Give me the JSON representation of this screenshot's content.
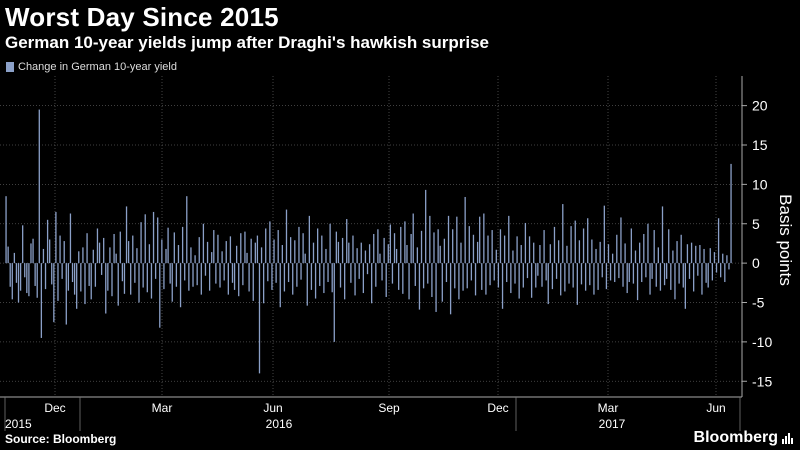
{
  "header": {
    "title": "Worst Day Since 2015",
    "subtitle": "German 10-year yields jump after Draghi's hawkish surprise"
  },
  "legend": {
    "label": "Change in German 10-year yield",
    "color": "#8ba0c8"
  },
  "footer": {
    "source": "Source: Bloomberg",
    "brand": "Bloomberg"
  },
  "chart_data": {
    "type": "bar",
    "ylabel": "Basis points",
    "ylim": [
      -17,
      23
    ],
    "yticks": [
      20,
      15,
      10,
      5,
      0,
      -5,
      -10,
      -15
    ],
    "month_labels": [
      "Dec",
      "Mar",
      "Jun",
      "Sep",
      "Dec",
      "Mar",
      "Jun"
    ],
    "year_labels": [
      "2015",
      "2016",
      "2017"
    ],
    "grid": true,
    "legend_position": "top-left",
    "series": [
      {
        "name": "Change in German 10-year yield",
        "values": [
          8.5,
          2.1,
          -3.0,
          -4.6,
          1.3,
          -2.5,
          -5.0,
          -3.5,
          4.8,
          -1.8,
          -3.8,
          -4.2,
          2.5,
          3.1,
          -2.9,
          -4.4,
          19.5,
          -9.5,
          1.8,
          -3.3,
          5.5,
          3.0,
          -2.7,
          -7.5,
          6.5,
          -4.8,
          3.5,
          -2.0,
          2.8,
          -7.8,
          -3.5,
          6.3,
          -2.4,
          -4.0,
          -5.8,
          1.5,
          -3.6,
          2.0,
          -5.2,
          3.8,
          -2.9,
          -4.6,
          1.7,
          -3.0,
          4.4,
          2.6,
          -1.5,
          3.2,
          -6.4,
          -3.5,
          2.0,
          -4.2,
          3.7,
          1.2,
          -5.4,
          4.0,
          -2.3,
          -3.9,
          7.2,
          2.8,
          -4.0,
          3.5,
          -2.5,
          1.9,
          -5.0,
          5.2,
          -3.1,
          6.2,
          -3.7,
          2.4,
          -4.5,
          6.5,
          -2.0,
          5.8,
          -8.2,
          3.0,
          -3.3,
          1.8,
          4.5,
          -2.6,
          -4.9,
          3.9,
          -3.0,
          2.3,
          -5.6,
          4.6,
          -2.2,
          8.5,
          -3.5,
          2.0,
          -3.0,
          1.0,
          -2.8,
          3.3,
          -4.0,
          5.0,
          -1.6,
          2.7,
          -3.5,
          1.4,
          4.2,
          -2.6,
          3.6,
          -3.1,
          1.5,
          -2.2,
          2.8,
          -4.0,
          3.4,
          -2.5,
          -3.4,
          2.2,
          -4.2,
          3.8,
          -2.8,
          4.0,
          1.3,
          -3.6,
          3.1,
          -4.8,
          2.6,
          3.5,
          -14.0,
          2.0,
          -5.1,
          4.4,
          -2.3,
          5.3,
          -3.4,
          3.0,
          -2.5,
          4.2,
          -5.6,
          2.3,
          -3.6,
          6.8,
          -2.4,
          3.3,
          -4.0,
          2.9,
          -3.0,
          4.6,
          -2.1,
          3.8,
          1.2,
          -5.4,
          6.0,
          -3.4,
          2.6,
          -4.5,
          4.4,
          -2.9,
          3.5,
          -3.8,
          1.8,
          -2.4,
          5.0,
          -3.7,
          -10.0,
          4.0,
          2.7,
          -3.1,
          3.2,
          -4.6,
          5.6,
          2.6,
          -2.5,
          3.5,
          -4.1,
          1.9,
          -2.0,
          2.6,
          -3.8,
          1.6,
          -1.4,
          2.4,
          -5.1,
          3.7,
          -3.0,
          4.3,
          1.2,
          -2.2,
          3.2,
          -4.3,
          2.4,
          4.9,
          -2.6,
          3.8,
          1.8,
          -3.4,
          4.6,
          -3.9,
          5.3,
          2.3,
          -4.6,
          3.7,
          6.3,
          -2.9,
          2.0,
          -5.9,
          4.1,
          -3.2,
          9.3,
          -2.6,
          6.0,
          -4.3,
          3.9,
          -6.2,
          4.3,
          2.2,
          -4.9,
          3.1,
          -2.4,
          6.0,
          -6.5,
          4.3,
          -3.2,
          5.9,
          -4.6,
          2.6,
          -3.5,
          8.4,
          -3.2,
          4.7,
          -2.2,
          3.6,
          -4.1,
          2.7,
          5.9,
          -3.4,
          6.3,
          -4.0,
          3.5,
          -2.8,
          4.2,
          -2.2,
          1.7,
          -3.1,
          4.3,
          -5.8,
          3.5,
          -2.4,
          6.0,
          -3.8,
          1.6,
          -2.6,
          3.4,
          -4.5,
          2.3,
          -3.1,
          5.1,
          -1.9,
          3.4,
          -4.4,
          2.6,
          -3.1,
          -1.6,
          2.3,
          -3.0,
          4.2,
          -2.2,
          -5.2,
          2.4,
          -3.3,
          4.6,
          -2.0,
          2.9,
          -4.1,
          7.5,
          -3.6,
          2.2,
          -2.6,
          4.7,
          -3.1,
          5.4,
          -5.3,
          2.9,
          -2.7,
          4.4,
          -3.5,
          5.7,
          -2.8,
          3.0,
          -4.0,
          1.8,
          -3.4,
          2.7,
          -1.8,
          7.3,
          -3.3,
          2.4,
          -2.2,
          1.2,
          -2.4,
          3.6,
          -1.9,
          5.8,
          -3.0,
          2.5,
          -3.8,
          -2.4,
          4.4,
          -2.6,
          1.6,
          -4.7,
          2.6,
          -2.4,
          3.7,
          -1.8,
          5.0,
          -4.0,
          -2.0,
          4.2,
          -3.0,
          2.0,
          -3.5,
          7.2,
          -2.8,
          -2.0,
          4.3,
          -3.4,
          1.6,
          -4.6,
          2.8,
          -2.6,
          3.6,
          -3.1,
          -5.8,
          2.4,
          -2.0,
          2.6,
          -3.6,
          2.2,
          -1.6,
          2.3,
          -4.0,
          1.8,
          -2.5,
          -3.1,
          1.9,
          -2.2,
          1.4,
          -1.2,
          5.7,
          -1.8,
          1.2,
          -2.4,
          1.0,
          -0.8,
          12.6
        ]
      }
    ]
  }
}
